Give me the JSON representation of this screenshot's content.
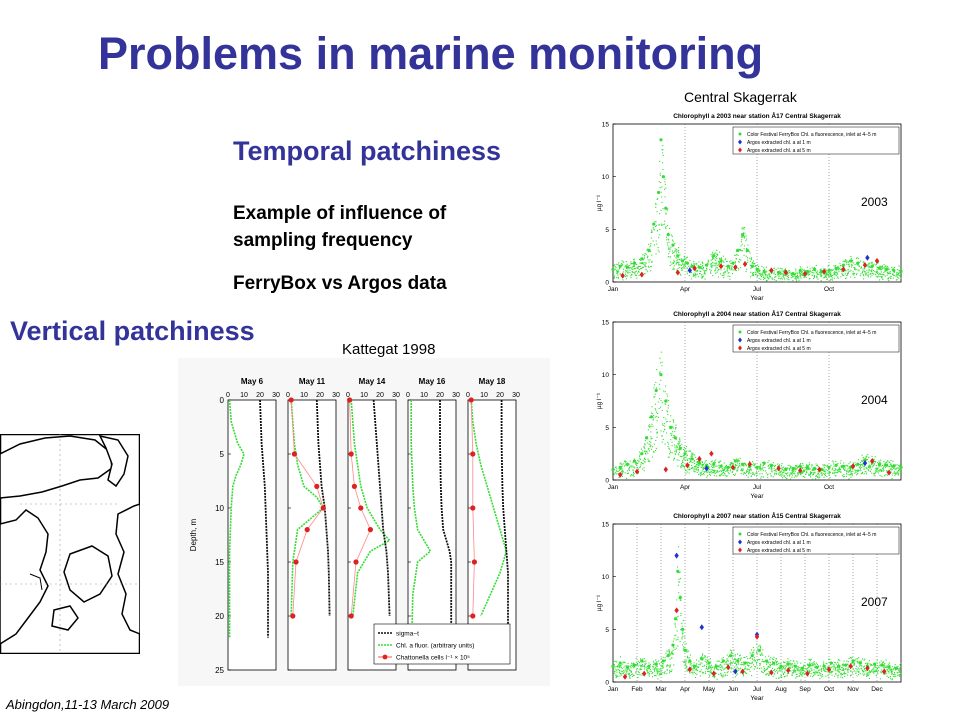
{
  "slide": {
    "title": "Problems in marine monitoring",
    "temporal_heading": "Temporal patchiness",
    "example_line1": "Example of influence of",
    "example_line2": "sampling frequency",
    "ferrybox_line": "FerryBox vs Argos data",
    "vertical_heading": "Vertical patchiness",
    "kattegat_caption": "Kattegat 1998",
    "skagerrak_caption": "Central Skagerrak",
    "footer": "Abingdon,11-13 March 2009"
  },
  "colors": {
    "title": "#333399",
    "ferrybox": "#33dd33",
    "argos_1m": "#2233cc",
    "argos_5m": "#dd2222",
    "sigma_t": "#111111"
  },
  "chart_data": [
    {
      "type": "scatter",
      "title": "Chlorophyll a 2003 near station Å17 Central Skagerrak",
      "year_label": "2003",
      "xlabel": "Year",
      "ylabel": "µg l⁻¹",
      "ylim": [
        0,
        15
      ],
      "yticks": [
        0,
        5,
        10,
        15
      ],
      "xlim": [
        0,
        12
      ],
      "xticks": [
        {
          "label": "Jan",
          "x": 0
        },
        {
          "label": "Apr",
          "x": 3
        },
        {
          "label": "Jul",
          "x": 6
        },
        {
          "label": "Oct",
          "x": 9
        }
      ],
      "legend": [
        "Color Festival FerryBox Chl. a fluorescence, inlet at 4−5 m",
        "Argos extracted chl. a at 1 m",
        "Argos extracted chl. a at 5 m"
      ],
      "legend_position": "top-right",
      "grid": "vertical-dotted",
      "series": [
        {
          "name": "Color Festival FerryBox Chl. a fluorescence, inlet at 4−5 m",
          "shape": "dots",
          "x": [
            0.0,
            0.3,
            0.6,
            0.9,
            1.2,
            1.5,
            1.7,
            1.9,
            2.0,
            2.1,
            2.2,
            2.3,
            2.5,
            2.7,
            2.9,
            3.1,
            3.3,
            3.6,
            3.9,
            4.2,
            4.5,
            4.8,
            5.0,
            5.2,
            5.4,
            5.6,
            5.8,
            6.0,
            6.3,
            6.6,
            6.9,
            7.2,
            7.5,
            7.8,
            8.1,
            8.4,
            8.7,
            9.0,
            9.3,
            9.6,
            9.9,
            10.2,
            10.5,
            10.8,
            11.1,
            11.4,
            11.7,
            12.0
          ],
          "y": [
            1.2,
            1.5,
            1.4,
            1.8,
            2.2,
            3.0,
            5.5,
            8.5,
            13.5,
            10.0,
            7.0,
            4.5,
            3.5,
            2.5,
            2.0,
            1.8,
            1.5,
            1.4,
            1.6,
            2.5,
            2.0,
            1.5,
            1.8,
            3.0,
            4.5,
            3.0,
            1.5,
            1.2,
            1.0,
            1.1,
            0.9,
            1.0,
            0.8,
            1.1,
            1.0,
            1.2,
            1.0,
            1.1,
            1.3,
            1.6,
            2.0,
            1.8,
            1.6,
            1.5,
            1.3,
            1.2,
            1.1,
            1.0
          ]
        },
        {
          "name": "Argos extracted chl. a at 1 m",
          "shape": "diamond",
          "x": [
            3.2,
            10.6
          ],
          "y": [
            1.1,
            2.3
          ]
        },
        {
          "name": "Argos extracted chl. a at 5 m",
          "shape": "diamond",
          "x": [
            0.4,
            1.2,
            2.7,
            3.4,
            4.5,
            5.1,
            5.5,
            6.6,
            7.2,
            8.0,
            8.8,
            9.6,
            10.5,
            11.0
          ],
          "y": [
            0.6,
            0.7,
            0.9,
            1.3,
            1.5,
            1.4,
            1.7,
            1.1,
            0.9,
            0.8,
            1.0,
            1.2,
            1.6,
            2.0
          ]
        }
      ]
    },
    {
      "type": "scatter",
      "title": "Chlorophyll a 2004 near station Å17 Central Skagerrak",
      "year_label": "2004",
      "xlabel": "Year",
      "ylabel": "µg l⁻¹",
      "ylim": [
        0,
        15
      ],
      "yticks": [
        0,
        5,
        10,
        15
      ],
      "xlim": [
        0,
        12
      ],
      "xticks": [
        {
          "label": "Jan",
          "x": 0
        },
        {
          "label": "Apr",
          "x": 3
        },
        {
          "label": "Jul",
          "x": 6
        },
        {
          "label": "Oct",
          "x": 9
        }
      ],
      "legend": [
        "Color Festival FerryBox Chl. a fluorescence, inlet at 4−5 m",
        "Argos extracted chl. a at 1 m",
        "Argos extracted chl. a at 5 m"
      ],
      "legend_position": "top-right",
      "grid": "vertical-dotted",
      "series": [
        {
          "name": "Color Festival FerryBox Chl. a fluorescence, inlet at 4−5 m",
          "shape": "dots",
          "x": [
            0.0,
            0.3,
            0.6,
            0.9,
            1.2,
            1.4,
            1.6,
            1.8,
            2.0,
            2.2,
            2.4,
            2.6,
            2.8,
            3.0,
            3.3,
            3.6,
            3.9,
            4.2,
            4.5,
            4.8,
            5.1,
            5.4,
            5.7,
            6.0,
            6.3,
            6.6,
            6.9,
            7.2,
            7.5,
            7.8,
            8.1,
            8.4,
            8.7,
            9.0,
            9.3,
            9.6,
            9.9,
            10.2,
            10.5,
            10.8,
            11.1,
            11.4,
            11.7,
            12.0
          ],
          "y": [
            1.0,
            1.2,
            1.5,
            1.8,
            2.5,
            4.0,
            6.0,
            8.5,
            10.0,
            7.5,
            5.0,
            4.0,
            3.0,
            2.5,
            2.0,
            1.6,
            1.4,
            1.5,
            1.3,
            1.2,
            1.8,
            1.5,
            1.3,
            1.2,
            1.6,
            1.4,
            1.2,
            1.0,
            1.1,
            1.3,
            1.2,
            1.1,
            1.0,
            1.2,
            1.4,
            1.3,
            1.2,
            1.5,
            1.9,
            1.7,
            1.5,
            1.4,
            1.3,
            1.2
          ]
        },
        {
          "name": "Argos extracted chl. a at 1 m",
          "shape": "diamond",
          "x": [
            3.9,
            10.5
          ],
          "y": [
            1.1,
            1.6
          ]
        },
        {
          "name": "Argos extracted chl. a at 5 m",
          "shape": "diamond",
          "x": [
            0.3,
            1.0,
            2.2,
            3.1,
            3.6,
            4.1,
            5.0,
            5.7,
            6.9,
            7.8,
            8.6,
            10.0,
            10.8,
            11.5
          ],
          "y": [
            0.5,
            0.8,
            1.0,
            1.4,
            2.0,
            2.5,
            1.2,
            1.5,
            1.1,
            0.9,
            1.0,
            1.3,
            1.8,
            0.7
          ]
        }
      ]
    },
    {
      "type": "scatter",
      "title": "Chlorophyll a 2007 near station Å15 Central Skagerrak",
      "year_label": "2007",
      "xlabel": "Year",
      "ylabel": "µg l⁻¹",
      "ylim": [
        0,
        15
      ],
      "yticks": [
        0,
        5,
        10,
        15
      ],
      "xlim": [
        0,
        12
      ],
      "xticks": [
        {
          "label": "Jan",
          "x": 0
        },
        {
          "label": "Feb",
          "x": 1
        },
        {
          "label": "Mar",
          "x": 2
        },
        {
          "label": "Apr",
          "x": 3
        },
        {
          "label": "May",
          "x": 4
        },
        {
          "label": "Jun",
          "x": 5
        },
        {
          "label": "Jul",
          "x": 6
        },
        {
          "label": "Aug",
          "x": 7
        },
        {
          "label": "Sep",
          "x": 8
        },
        {
          "label": "Oct",
          "x": 9
        },
        {
          "label": "Nov",
          "x": 10
        },
        {
          "label": "Dec",
          "x": 11
        }
      ],
      "legend": [
        "Color Festival FerryBox Chl. a fluorescence, inlet at 4−5 m",
        "Argos extracted chl. a at 1 m",
        "Argos extracted chl. a at 5 m"
      ],
      "legend_position": "top-right",
      "grid": "vertical-dotted",
      "series": [
        {
          "name": "Color Festival FerryBox Chl. a fluorescence, inlet at 4−5 m",
          "shape": "dots",
          "x": [
            0.0,
            0.3,
            0.6,
            0.9,
            1.2,
            1.5,
            1.8,
            2.1,
            2.3,
            2.5,
            2.6,
            2.7,
            2.8,
            2.9,
            3.0,
            3.2,
            3.4,
            3.7,
            4.0,
            4.3,
            4.6,
            4.9,
            5.2,
            5.5,
            5.8,
            6.1,
            6.4,
            6.7,
            7.0,
            7.3,
            7.6,
            7.9,
            8.2,
            8.5,
            8.8,
            9.1,
            9.4,
            9.7,
            10.0,
            10.3,
            10.6,
            10.9,
            11.2,
            11.5,
            11.8
          ],
          "y": [
            1.5,
            1.8,
            1.4,
            1.6,
            2.0,
            1.5,
            1.7,
            2.0,
            2.5,
            3.5,
            6.0,
            10.5,
            8.0,
            5.0,
            3.0,
            2.0,
            1.5,
            2.2,
            1.8,
            1.5,
            2.0,
            2.5,
            2.0,
            1.8,
            2.5,
            3.0,
            2.0,
            1.8,
            1.5,
            1.7,
            1.5,
            1.3,
            1.6,
            1.4,
            1.5,
            1.8,
            1.5,
            1.6,
            2.0,
            1.8,
            1.5,
            1.7,
            1.6,
            1.4,
            1.3
          ]
        },
        {
          "name": "Argos extracted chl. a at 1 m",
          "shape": "diamond",
          "x": [
            2.65,
            3.7,
            5.1,
            6.0
          ],
          "y": [
            12.0,
            5.2,
            1.0,
            4.5
          ]
        },
        {
          "name": "Argos extracted chl. a at 5 m",
          "shape": "diamond",
          "x": [
            0.5,
            1.3,
            2.65,
            3.2,
            4.2,
            4.8,
            5.4,
            6.0,
            6.6,
            7.3,
            8.1,
            9.0,
            9.9,
            10.6,
            11.3
          ],
          "y": [
            0.5,
            0.8,
            6.8,
            1.2,
            0.8,
            1.4,
            1.0,
            4.3,
            0.9,
            1.1,
            0.8,
            1.2,
            1.5,
            1.3,
            1.0
          ]
        }
      ]
    },
    {
      "type": "line",
      "title": "Kattegat 1998",
      "ylabel": "Depth, m",
      "ylim": [
        0,
        25
      ],
      "yticks": [
        0,
        5,
        10,
        15,
        20,
        25
      ],
      "xlim": [
        0,
        30
      ],
      "xticks": [
        0,
        10,
        20,
        30
      ],
      "legend": [
        "sigma−t",
        "Chl. a fluor. (arbitrary units)",
        "Chattonella cells l⁻¹ × 10⁵"
      ],
      "legend_position": "bottom-right",
      "panels": [
        {
          "date": "May 6",
          "sigma_t": {
            "x": [
              20,
              20.5,
              21,
              22,
              23,
              23.5,
              24,
              24.5,
              25,
              25,
              25
            ],
            "depth": [
              0,
              2,
              4,
              6,
              8,
              10,
              12,
              14,
              16,
              20,
              22
            ]
          },
          "chl_fluor": {
            "x": [
              1,
              2,
              6,
              10,
              8,
              5,
              3,
              2,
              1,
              1,
              1
            ],
            "depth": [
              0,
              2,
              4,
              5,
              6,
              7,
              8,
              10,
              14,
              18,
              22
            ]
          }
        },
        {
          "date": "May 11",
          "sigma_t": {
            "x": [
              18,
              18.5,
              19,
              20,
              21,
              23,
              24,
              25,
              25.5,
              26
            ],
            "depth": [
              0,
              2,
              4,
              6,
              8,
              10,
              12,
              14,
              16,
              20
            ]
          },
          "chl_fluor": {
            "x": [
              2,
              3,
              4,
              6,
              10,
              18,
              22,
              14,
              6,
              3,
              2
            ],
            "depth": [
              0,
              2,
              4,
              6,
              8,
              9,
              10,
              11,
              12,
              15,
              20
            ]
          },
          "chattonella": {
            "x": [
              2,
              4,
              18,
              22,
              12,
              5,
              3
            ],
            "depth": [
              0,
              5,
              8,
              10,
              12,
              15,
              20
            ]
          }
        },
        {
          "date": "May 14",
          "sigma_t": {
            "x": [
              16,
              17,
              18,
              19,
              20,
              21,
              22,
              24,
              25,
              26
            ],
            "depth": [
              0,
              2,
              4,
              6,
              8,
              10,
              12,
              14,
              16,
              20
            ]
          },
          "chl_fluor": {
            "x": [
              2,
              3,
              4,
              6,
              8,
              12,
              20,
              26,
              14,
              6,
              3
            ],
            "depth": [
              0,
              2,
              4,
              6,
              8,
              10,
              12,
              13,
              14,
              16,
              20
            ]
          },
          "chattonella": {
            "x": [
              1,
              2,
              4,
              8,
              14,
              5,
              2
            ],
            "depth": [
              0,
              5,
              8,
              10,
              12,
              15,
              20
            ]
          }
        },
        {
          "date": "May 16",
          "sigma_t": {
            "x": [
              20,
              20,
              20.5,
              21,
              22,
              26,
              27,
              27,
              27
            ],
            "depth": [
              0,
              4,
              8,
              10,
              12,
              14,
              15,
              20,
              24
            ]
          },
          "chl_fluor": {
            "x": [
              2,
              2,
              3,
              4,
              6,
              10,
              14,
              6,
              3,
              2
            ],
            "depth": [
              0,
              4,
              8,
              10,
              12,
              13,
              14,
              15,
              18,
              24
            ]
          }
        },
        {
          "date": "May 18",
          "sigma_t": {
            "x": [
              21,
              21,
              21.5,
              22,
              23,
              24,
              25,
              25,
              25
            ],
            "depth": [
              0,
              4,
              8,
              10,
              12,
              14,
              16,
              20,
              24
            ]
          },
          "chl_fluor": {
            "x": [
              2,
              3,
              5,
              8,
              12,
              16,
              20,
              24,
              20,
              14,
              8
            ],
            "depth": [
              0,
              2,
              4,
              6,
              8,
              10,
              12,
              14,
              16,
              18,
              20
            ]
          },
          "chattonella": {
            "x": [
              2,
              3,
              3,
              4,
              3
            ],
            "depth": [
              0,
              5,
              10,
              15,
              20
            ]
          }
        }
      ]
    }
  ]
}
